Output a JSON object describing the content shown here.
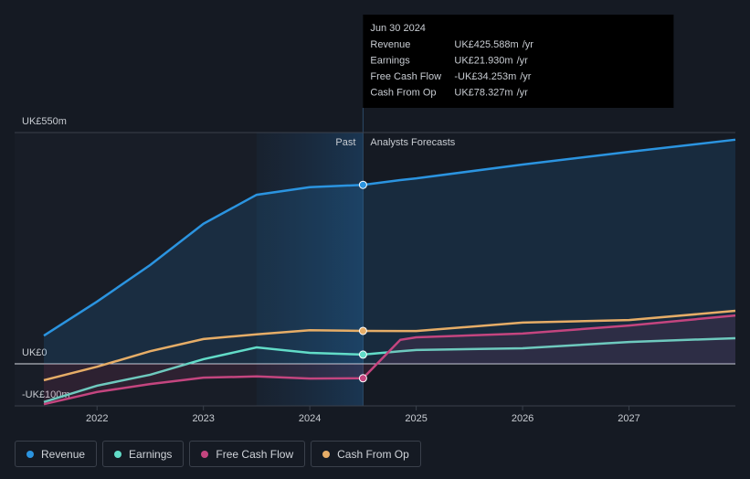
{
  "chart_data": {
    "type": "line",
    "x": [
      2021.5,
      2022,
      2022.5,
      2023,
      2023.5,
      2024,
      2024.5,
      2024.85,
      2025,
      2026,
      2027,
      2028
    ],
    "series": [
      {
        "name": "Revenue",
        "color": "#2b94e0",
        "values": [
          67,
          148,
          235,
          333,
          402,
          420,
          425.588,
          437,
          441,
          474,
          504,
          533
        ]
      },
      {
        "name": "Earnings",
        "color": "#62dcc8",
        "values": [
          -91,
          -52,
          -26,
          11,
          39,
          26,
          21.93,
          30,
          33,
          37,
          52,
          61
        ]
      },
      {
        "name": "Free Cash Flow",
        "color": "#c4457f",
        "values": [
          -96,
          -67,
          -48,
          -33,
          -30,
          -35,
          -34.253,
          57,
          63,
          72,
          91,
          115
        ]
      },
      {
        "name": "Cash From Op",
        "color": "#e6ad67",
        "values": [
          -39,
          -7,
          30,
          59,
          70,
          80,
          78.327,
          78,
          78,
          98,
          104,
          126
        ]
      }
    ],
    "xlim": [
      2021.5,
      2028
    ],
    "xticks": [
      2022,
      2023,
      2024,
      2025,
      2026,
      2027
    ],
    "ylim": [
      -100,
      550
    ],
    "yticks": [
      {
        "value": 550,
        "label": "UK£550m"
      },
      {
        "value": 0,
        "label": "UK£0"
      },
      {
        "value": -100,
        "label": "-UK£100m"
      }
    ],
    "forecast_start": 2024.5,
    "highlight_start": 2023.5,
    "past_label": "Past",
    "forecast_label": "Analysts Forecasts",
    "tooltip": {
      "date": "Jun 30 2024",
      "rows": [
        {
          "label": "Revenue",
          "value": "UK£425.588m",
          "unit": "/yr",
          "color": "#2b94e0"
        },
        {
          "label": "Earnings",
          "value": "UK£21.930m",
          "unit": "/yr",
          "color": "#62dcc8"
        },
        {
          "label": "Free Cash Flow",
          "value": "-UK£34.253m",
          "unit": "/yr",
          "color": "#ff4d4d"
        },
        {
          "label": "Cash From Op",
          "value": "UK£78.327m",
          "unit": "/yr",
          "color": "#e6ad67"
        }
      ]
    }
  }
}
